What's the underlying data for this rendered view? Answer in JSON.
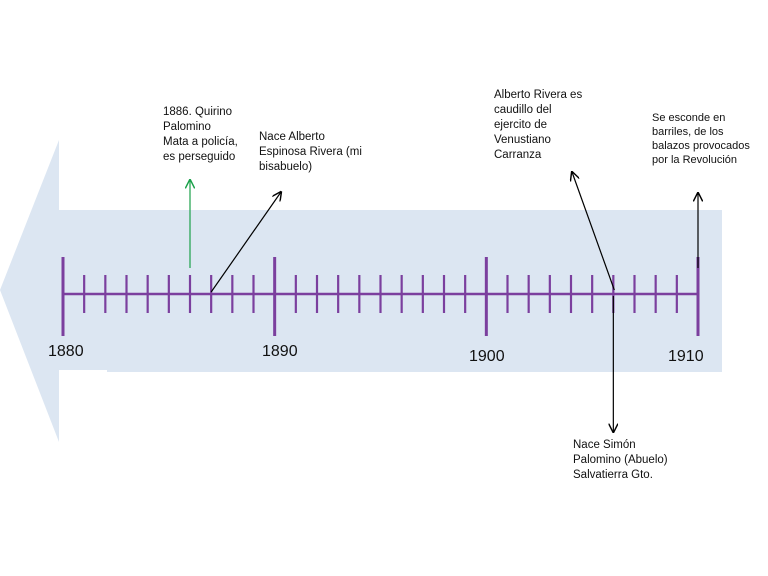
{
  "colors": {
    "arrow_fill": "#dce6f2",
    "axis": "#7b3f9e",
    "pointer": "#000000",
    "pointer_green": "#1aa14a"
  },
  "timeline": {
    "start_year": 1880,
    "end_year": 1910,
    "major_labels": [
      "1880",
      "1890",
      "1900",
      "1910"
    ]
  },
  "events": [
    {
      "id": "quirino",
      "year": 1886,
      "text": "1886. Quirino\nPalomino\nMata a policía,\nes perseguido"
    },
    {
      "id": "alberto-espinosa",
      "year": 1887,
      "text": "Nace Alberto\nEspinosa Rivera (mi\nbisabuelo)"
    },
    {
      "id": "alberto-caudillo",
      "year": 1906,
      "text": "Alberto Rivera es\ncaudillo del\nejercito de\nVenustiano\nCarranza"
    },
    {
      "id": "se-esconde",
      "year": 1910,
      "text": "Se esconde en\nbarriles, de los\nbalazos provocados\npor la Revolución"
    },
    {
      "id": "simon",
      "year": 1906,
      "text": "Nace Simón\nPalomino (Abuelo)\nSalvatierra Gto."
    }
  ]
}
